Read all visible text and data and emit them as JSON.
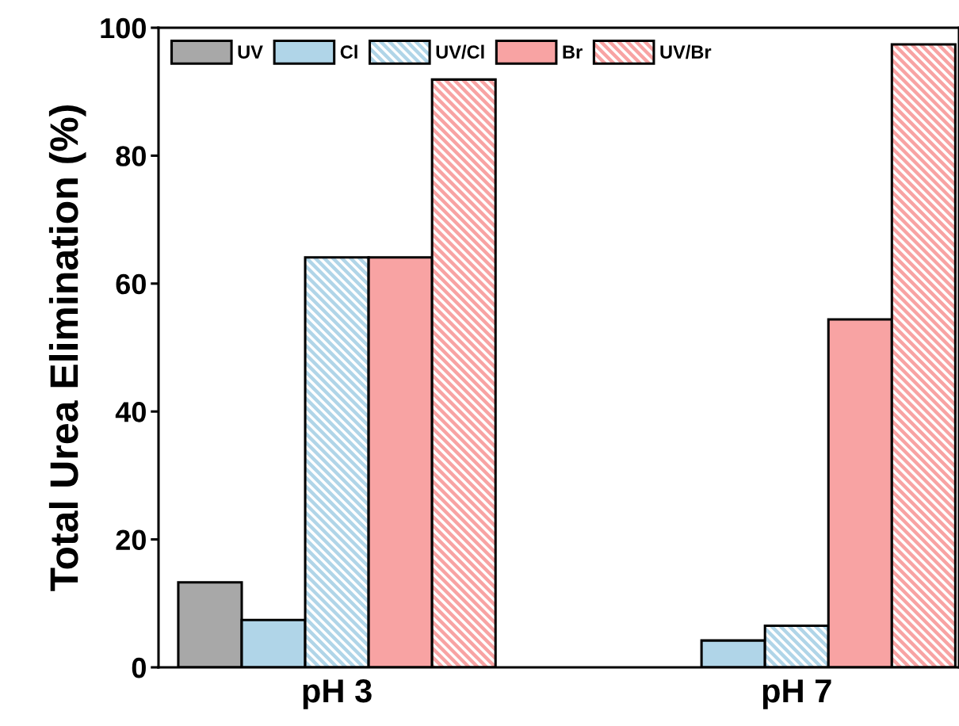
{
  "chart_data": {
    "type": "bar",
    "ylabel": "Total Urea Elimination (%)",
    "categories": [
      "pH 3",
      "pH 7"
    ],
    "series": [
      {
        "name": "UV",
        "color": "#a8a8a8",
        "values": [
          13.3,
          null
        ]
      },
      {
        "name": "Cl",
        "color": "#b0d5e8",
        "values": [
          7.4,
          4.2
        ]
      },
      {
        "name": "UV/Cl",
        "color": "#b0d5e8",
        "values": [
          64.1,
          6.5
        ]
      },
      {
        "name": "Br",
        "color": "#f8a3a3",
        "values": [
          64.1,
          54.4
        ]
      },
      {
        "name": "UV/Br",
        "color": "#f8a3a3",
        "values": [
          91.9,
          97.4
        ]
      }
    ],
    "ylim": [
      0,
      100
    ],
    "yticks": [
      0,
      20,
      40,
      60,
      80,
      100
    ],
    "grid": false,
    "legend": "top left"
  }
}
